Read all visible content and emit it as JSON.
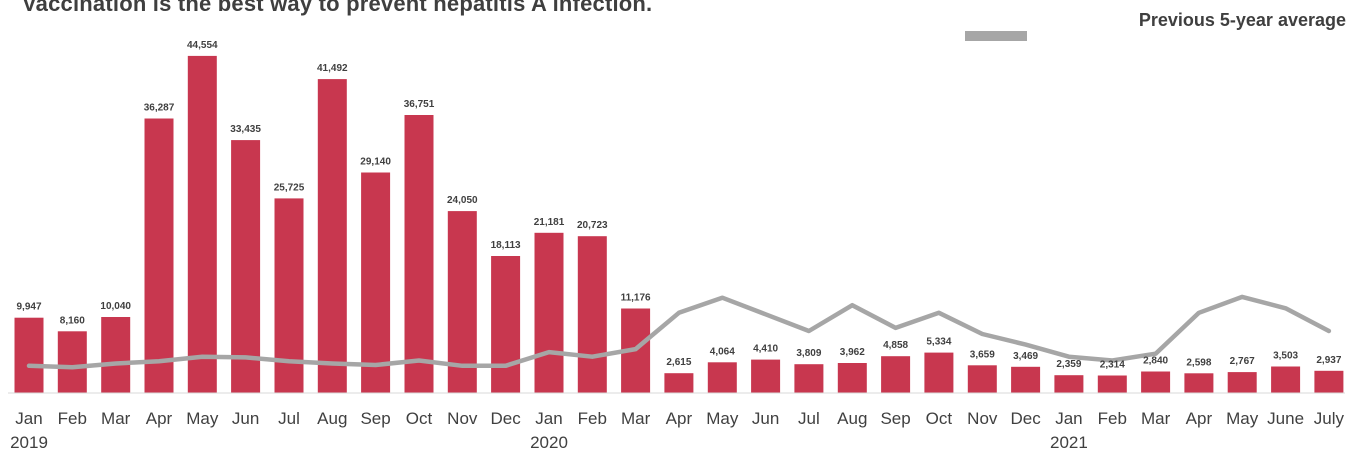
{
  "chart_data": {
    "type": "bar",
    "title": "Vaccination is the best way to prevent hepatitis A infection.",
    "categories": [
      "Jan",
      "Feb",
      "Mar",
      "Apr",
      "May",
      "Jun",
      "Jul",
      "Aug",
      "Sep",
      "Oct",
      "Nov",
      "Dec",
      "Jan",
      "Feb",
      "Mar",
      "Apr",
      "May",
      "Jun",
      "Jul",
      "Aug",
      "Sep",
      "Oct",
      "Nov",
      "Dec",
      "Jan",
      "Feb",
      "Mar",
      "Apr",
      "May",
      "June",
      "July"
    ],
    "year_labels": [
      {
        "year": "2019",
        "category_index": 0
      },
      {
        "year": "2020",
        "category_index": 12
      },
      {
        "year": "2021",
        "category_index": 24
      }
    ],
    "series": [
      {
        "type": "bar",
        "color": "#c8374f",
        "values": [
          9947,
          8160,
          10040,
          36287,
          44554,
          33435,
          25725,
          41492,
          29140,
          36751,
          24050,
          18113,
          21181,
          20723,
          11176,
          2615,
          4064,
          4410,
          3809,
          3962,
          4858,
          5334,
          3659,
          3469,
          2359,
          2314,
          2840,
          2598,
          2767,
          3503,
          2937
        ],
        "labels": [
          "9,947",
          "8,160",
          "10,040",
          "36,287",
          "44,554",
          "33,435",
          "25,725",
          "41,492",
          "29,140",
          "36,751",
          "24,050",
          "18,113",
          "21,181",
          "20,723",
          "11,176",
          "2,615",
          "4,064",
          "4,410",
          "3,809",
          "3,962",
          "4,858",
          "5,334",
          "3,659",
          "3,469",
          "2,359",
          "2,314",
          "2,840",
          "2,598",
          "2,767",
          "3,503",
          "2,937"
        ]
      },
      {
        "type": "line",
        "name": "Previous 5-year average",
        "color": "#a6a6a6",
        "values": [
          3600,
          3400,
          3900,
          4200,
          4800,
          4700,
          4200,
          3900,
          3700,
          4300,
          3600,
          3600,
          5400,
          4800,
          5800,
          10600,
          12600,
          10400,
          8200,
          11600,
          8600,
          10600,
          7800,
          6400,
          4800,
          4300,
          5200,
          10600,
          12700,
          11200,
          8200
        ]
      }
    ],
    "ylim": [
      0,
      46000
    ],
    "legend": {
      "label": "Previous 5-year average",
      "position": "top-right"
    },
    "grid": false
  }
}
